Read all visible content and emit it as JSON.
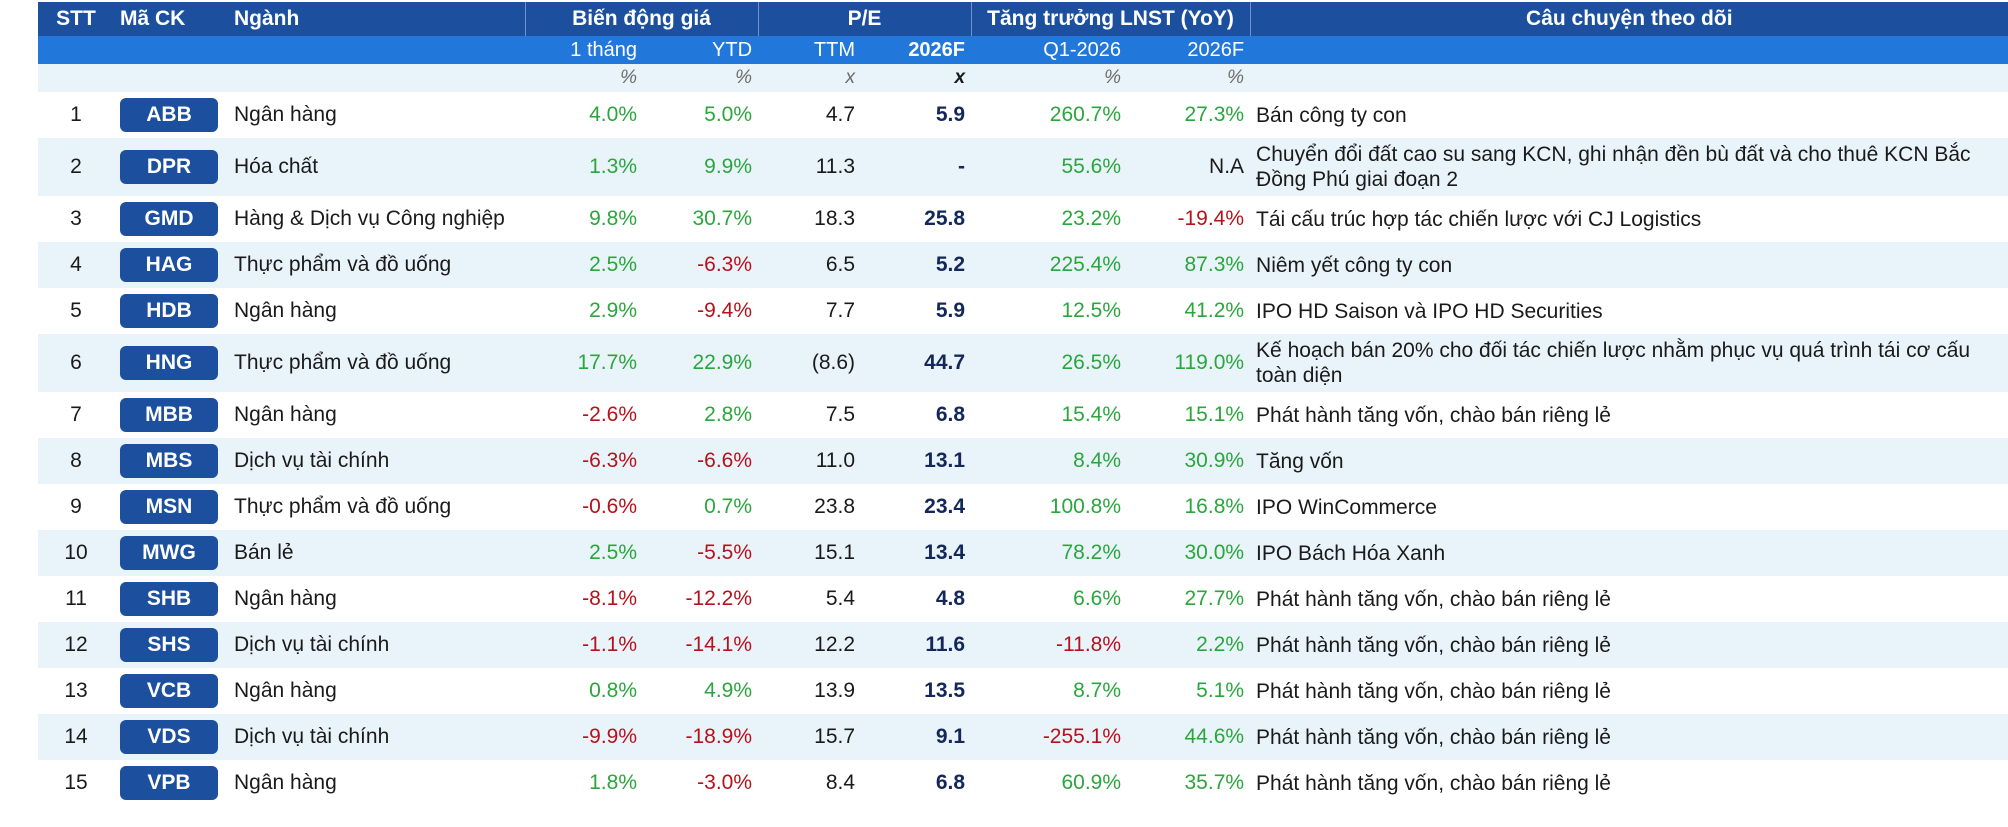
{
  "header": {
    "stt": "STT",
    "ticker": "Mã CK",
    "sector": "Ngành",
    "price_change": "Biến động giá",
    "pe": "P/E",
    "growth": "Tăng trưởng LNST (YoY)",
    "story": "Câu chuyện theo dõi",
    "sub": {
      "m1": "1 tháng",
      "ytd": "YTD",
      "ttm": "TTM",
      "pe2026": "2026F",
      "q1": "Q1-2026",
      "g2026": "2026F"
    },
    "units": {
      "m1": "%",
      "ytd": "%",
      "ttm": "x",
      "pe2026": "x",
      "q1": "%",
      "g2026": "%"
    }
  },
  "colors": {
    "header_dark": "#1c4f9e",
    "header_light": "#2277db",
    "stripe": "#e9f3fa",
    "positive": "#2aa63d",
    "negative": "#b5121b"
  },
  "rows": [
    {
      "stt": "1",
      "ticker": "ABB",
      "sector": "Ngân hàng",
      "m1": "4.0%",
      "m1_s": "pos",
      "ytd": "5.0%",
      "ytd_s": "pos",
      "ttm": "4.7",
      "pe2026": "5.9",
      "q1": "260.7%",
      "q1_s": "pos",
      "g2026": "27.3%",
      "g2026_s": "pos",
      "story": "Bán công ty con"
    },
    {
      "stt": "2",
      "ticker": "DPR",
      "sector": "Hóa chất",
      "m1": "1.3%",
      "m1_s": "pos",
      "ytd": "9.9%",
      "ytd_s": "pos",
      "ttm": "11.3",
      "pe2026": "-",
      "q1": "55.6%",
      "q1_s": "pos",
      "g2026": "N.A",
      "g2026_s": "neutral",
      "story": "Chuyển đổi đất cao su sang KCN, ghi nhận đền bù đất và cho thuê KCN Bắc Đồng Phú giai đoạn 2",
      "tall": true
    },
    {
      "stt": "3",
      "ticker": "GMD",
      "sector": "Hàng & Dịch vụ Công nghiệp",
      "m1": "9.8%",
      "m1_s": "pos",
      "ytd": "30.7%",
      "ytd_s": "pos",
      "ttm": "18.3",
      "pe2026": "25.8",
      "q1": "23.2%",
      "q1_s": "pos",
      "g2026": "-19.4%",
      "g2026_s": "neg",
      "story": "Tái cấu trúc hợp tác chiến lược với CJ Logistics"
    },
    {
      "stt": "4",
      "ticker": "HAG",
      "sector": "Thực phẩm và đồ uống",
      "m1": "2.5%",
      "m1_s": "pos",
      "ytd": "-6.3%",
      "ytd_s": "neg",
      "ttm": "6.5",
      "pe2026": "5.2",
      "q1": "225.4%",
      "q1_s": "pos",
      "g2026": "87.3%",
      "g2026_s": "pos",
      "story": "Niêm yết công ty con"
    },
    {
      "stt": "5",
      "ticker": "HDB",
      "sector": "Ngân hàng",
      "m1": "2.9%",
      "m1_s": "pos",
      "ytd": "-9.4%",
      "ytd_s": "neg",
      "ttm": "7.7",
      "pe2026": "5.9",
      "q1": "12.5%",
      "q1_s": "pos",
      "g2026": "41.2%",
      "g2026_s": "pos",
      "story": "IPO HD Saison và IPO HD Securities"
    },
    {
      "stt": "6",
      "ticker": "HNG",
      "sector": "Thực phẩm và đồ uống",
      "m1": "17.7%",
      "m1_s": "pos",
      "ytd": "22.9%",
      "ytd_s": "pos",
      "ttm": "(8.6)",
      "pe2026": "44.7",
      "q1": "26.5%",
      "q1_s": "pos",
      "g2026": "119.0%",
      "g2026_s": "pos",
      "story": "Kế hoạch bán 20% cho đối tác chiến lược nhằm phục vụ quá trình tái cơ cấu toàn diện",
      "tall": true
    },
    {
      "stt": "7",
      "ticker": "MBB",
      "sector": "Ngân hàng",
      "m1": "-2.6%",
      "m1_s": "neg",
      "ytd": "2.8%",
      "ytd_s": "pos",
      "ttm": "7.5",
      "pe2026": "6.8",
      "q1": "15.4%",
      "q1_s": "pos",
      "g2026": "15.1%",
      "g2026_s": "pos",
      "story": "Phát hành tăng vốn, chào bán riêng lẻ"
    },
    {
      "stt": "8",
      "ticker": "MBS",
      "sector": "Dịch vụ tài chính",
      "m1": "-6.3%",
      "m1_s": "neg",
      "ytd": "-6.6%",
      "ytd_s": "neg",
      "ttm": "11.0",
      "pe2026": "13.1",
      "q1": "8.4%",
      "q1_s": "pos",
      "g2026": "30.9%",
      "g2026_s": "pos",
      "story": "Tăng vốn"
    },
    {
      "stt": "9",
      "ticker": "MSN",
      "sector": "Thực phẩm và đồ uống",
      "m1": "-0.6%",
      "m1_s": "neg",
      "ytd": "0.7%",
      "ytd_s": "pos",
      "ttm": "23.8",
      "pe2026": "23.4",
      "q1": "100.8%",
      "q1_s": "pos",
      "g2026": "16.8%",
      "g2026_s": "pos",
      "story": "IPO WinCommerce"
    },
    {
      "stt": "10",
      "ticker": "MWG",
      "sector": "Bán lẻ",
      "m1": "2.5%",
      "m1_s": "pos",
      "ytd": "-5.5%",
      "ytd_s": "neg",
      "ttm": "15.1",
      "pe2026": "13.4",
      "q1": "78.2%",
      "q1_s": "pos",
      "g2026": "30.0%",
      "g2026_s": "pos",
      "story": "IPO Bách Hóa Xanh"
    },
    {
      "stt": "11",
      "ticker": "SHB",
      "sector": "Ngân hàng",
      "m1": "-8.1%",
      "m1_s": "neg",
      "ytd": "-12.2%",
      "ytd_s": "neg",
      "ttm": "5.4",
      "pe2026": "4.8",
      "q1": "6.6%",
      "q1_s": "pos",
      "g2026": "27.7%",
      "g2026_s": "pos",
      "story": "Phát hành tăng vốn, chào bán riêng lẻ"
    },
    {
      "stt": "12",
      "ticker": "SHS",
      "sector": "Dịch vụ tài chính",
      "m1": "-1.1%",
      "m1_s": "neg",
      "ytd": "-14.1%",
      "ytd_s": "neg",
      "ttm": "12.2",
      "pe2026": "11.6",
      "q1": "-11.8%",
      "q1_s": "neg",
      "g2026": "2.2%",
      "g2026_s": "pos",
      "story": "Phát hành tăng vốn, chào bán riêng lẻ"
    },
    {
      "stt": "13",
      "ticker": "VCB",
      "sector": "Ngân hàng",
      "m1": "0.8%",
      "m1_s": "pos",
      "ytd": "4.9%",
      "ytd_s": "pos",
      "ttm": "13.9",
      "pe2026": "13.5",
      "q1": "8.7%",
      "q1_s": "pos",
      "g2026": "5.1%",
      "g2026_s": "pos",
      "story": "Phát hành tăng vốn, chào bán riêng lẻ"
    },
    {
      "stt": "14",
      "ticker": "VDS",
      "sector": "Dịch vụ tài chính",
      "m1": "-9.9%",
      "m1_s": "neg",
      "ytd": "-18.9%",
      "ytd_s": "neg",
      "ttm": "15.7",
      "pe2026": "9.1",
      "q1": "-255.1%",
      "q1_s": "neg",
      "g2026": "44.6%",
      "g2026_s": "pos",
      "story": "Phát hành tăng vốn, chào bán riêng lẻ"
    },
    {
      "stt": "15",
      "ticker": "VPB",
      "sector": "Ngân hàng",
      "m1": "1.8%",
      "m1_s": "pos",
      "ytd": "-3.0%",
      "ytd_s": "neg",
      "ttm": "8.4",
      "pe2026": "6.8",
      "q1": "60.9%",
      "q1_s": "pos",
      "g2026": "35.7%",
      "g2026_s": "pos",
      "story": "Phát hành tăng vốn, chào bán riêng lẻ"
    }
  ]
}
